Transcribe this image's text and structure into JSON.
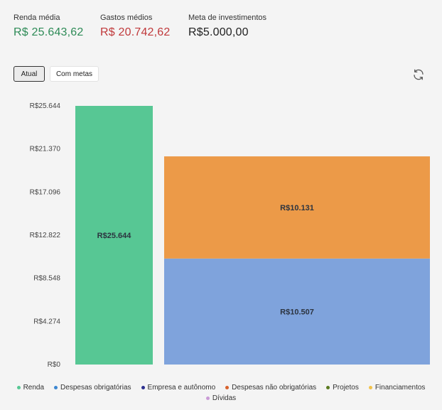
{
  "stats": {
    "renda": {
      "label": "Renda média",
      "value": "R$ 25.643,62",
      "color": "#2e8b57"
    },
    "gastos": {
      "label": "Gastos médios",
      "value": "R$ 20.742,62",
      "color": "#c0393b"
    },
    "meta": {
      "label": "Meta de investimentos",
      "value": "R$5.000,00",
      "color": "#222222"
    }
  },
  "toggle": {
    "atual": "Atual",
    "com_metas": "Com metas",
    "selected": "Atual"
  },
  "icons": {
    "refresh": "refresh-icon"
  },
  "chart_data": {
    "type": "bar",
    "stacked": true,
    "ylim": [
      0,
      25644
    ],
    "yticks": [
      0,
      4274,
      8548,
      12822,
      17096,
      21370,
      25644
    ],
    "ytick_labels": [
      "R$0",
      "R$4.274",
      "R$8.548",
      "R$12.822",
      "R$17.096",
      "R$21.370",
      "R$25.644"
    ],
    "bars": [
      {
        "segments": [
          {
            "series": "Renda",
            "value": 25644,
            "label": "R$25.644",
            "color": "#57c794"
          }
        ]
      },
      {
        "segments": [
          {
            "series": "Despesas obrigatórias",
            "value": 10507,
            "label": "R$10.507",
            "color": "#7fa3dc"
          },
          {
            "series": "Despesas não obrigatórias",
            "value": 10131,
            "label": "R$10.131",
            "color": "#ec9a48"
          }
        ]
      }
    ],
    "legend_position": "bottom",
    "legend": [
      {
        "name": "Renda",
        "color": "#57c794"
      },
      {
        "name": "Despesas obrigatórias",
        "color": "#3b86d1"
      },
      {
        "name": "Empresa e autônomo",
        "color": "#2c2f8f"
      },
      {
        "name": "Despesas não obrigatórias",
        "color": "#d8622c"
      },
      {
        "name": "Projetos",
        "color": "#5a7a1f"
      },
      {
        "name": "Financiamentos",
        "color": "#f2c24a"
      },
      {
        "name": "Dívidas",
        "color": "#c99ad6"
      }
    ]
  }
}
